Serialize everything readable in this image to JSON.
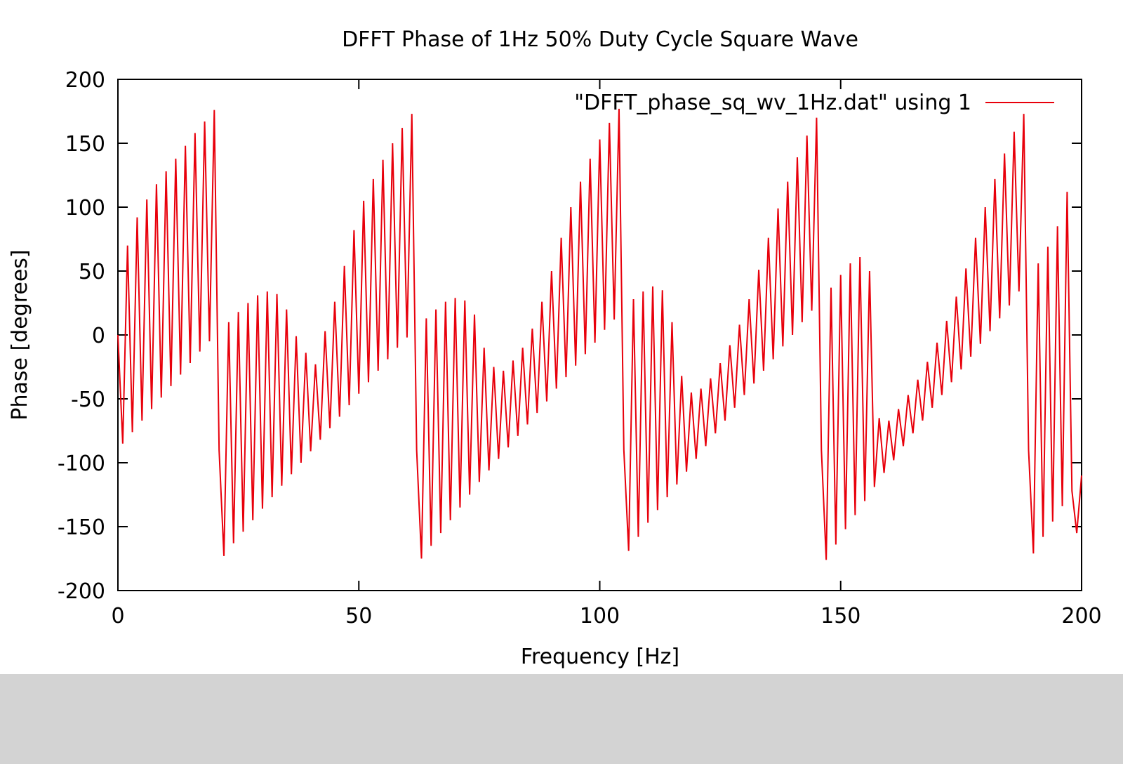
{
  "chart_data": {
    "type": "line",
    "title": "DFFT Phase of 1Hz 50% Duty Cycle Square Wave",
    "xlabel": "Frequency [Hz]",
    "ylabel": "Phase [degrees]",
    "xlim": [
      0,
      200
    ],
    "ylim": [
      -200,
      200
    ],
    "xticks": [
      0,
      50,
      100,
      150,
      200
    ],
    "yticks": [
      -200,
      -150,
      -100,
      -50,
      0,
      50,
      100,
      150,
      200
    ],
    "grid": false,
    "legend_position": "top-right",
    "series": [
      {
        "name": "\"DFFT_phase_sq_wv_1Hz.dat\" using 1",
        "color": "#e8000b",
        "x": [
          0,
          1,
          2,
          3,
          4,
          5,
          6,
          7,
          8,
          9,
          10,
          11,
          12,
          13,
          14,
          15,
          16,
          17,
          18,
          19,
          20,
          21,
          22,
          23,
          24,
          25,
          26,
          27,
          28,
          29,
          30,
          31,
          32,
          33,
          34,
          35,
          36,
          37,
          38,
          39,
          40,
          41,
          42,
          43,
          44,
          45,
          46,
          47,
          48,
          49,
          50,
          51,
          52,
          53,
          54,
          55,
          56,
          57,
          58,
          59,
          60,
          61,
          62,
          63,
          64,
          65,
          66,
          67,
          68,
          69,
          70,
          71,
          72,
          73,
          74,
          75,
          76,
          77,
          78,
          79,
          80,
          81,
          82,
          83,
          84,
          85,
          86,
          87,
          88,
          89,
          90,
          91,
          92,
          93,
          94,
          95,
          96,
          97,
          98,
          99,
          100,
          101,
          102,
          103,
          104,
          105,
          106,
          107,
          108,
          109,
          110,
          111,
          112,
          113,
          114,
          115,
          116,
          117,
          118,
          119,
          120,
          121,
          122,
          123,
          124,
          125,
          126,
          127,
          128,
          129,
          130,
          131,
          132,
          133,
          134,
          135,
          136,
          137,
          138,
          139,
          140,
          141,
          142,
          143,
          144,
          145,
          146,
          147,
          148,
          149,
          150,
          151,
          152,
          153,
          154,
          155,
          156,
          157,
          158,
          159,
          160,
          161,
          162,
          163,
          164,
          165,
          166,
          167,
          168,
          169,
          170,
          171,
          172,
          173,
          174,
          175,
          176,
          177,
          178,
          179,
          180,
          181,
          182,
          183,
          184,
          185,
          186,
          187,
          188,
          189,
          190,
          191,
          192,
          193,
          194,
          195,
          196,
          197,
          198,
          199,
          200
        ],
        "values": [
          0,
          -85,
          70,
          -76,
          92,
          -67,
          106,
          -58,
          118,
          -49,
          128,
          -40,
          138,
          -31,
          148,
          -22,
          158,
          -13,
          167,
          -5,
          176,
          -90,
          -173,
          10,
          -163,
          18,
          -154,
          25,
          -145,
          31,
          -136,
          34,
          -127,
          32,
          -118,
          20,
          -109,
          -1,
          -100,
          -14,
          -91,
          -23,
          -82,
          3,
          -73,
          26,
          -64,
          54,
          -55,
          82,
          -46,
          105,
          -37,
          122,
          -28,
          137,
          -19,
          150,
          -10,
          162,
          -2,
          173,
          -90,
          -175,
          13,
          -165,
          20,
          -155,
          26,
          -145,
          29,
          -135,
          27,
          -125,
          16,
          -115,
          -10,
          -106,
          -25,
          -97,
          -28,
          -88,
          -20,
          -79,
          -10,
          -70,
          5,
          -61,
          26,
          -52,
          50,
          -42,
          76,
          -33,
          100,
          -24,
          120,
          -15,
          138,
          -6,
          153,
          4,
          166,
          12,
          177,
          -90,
          -169,
          28,
          -158,
          34,
          -147,
          38,
          -137,
          35,
          -127,
          10,
          -117,
          -32,
          -107,
          -45,
          -97,
          -42,
          -87,
          -34,
          -77,
          -22,
          -67,
          -8,
          -57,
          8,
          -47,
          28,
          -38,
          51,
          -28,
          76,
          -19,
          99,
          -9,
          120,
          0,
          139,
          10,
          156,
          19,
          170,
          -90,
          -176,
          37,
          -164,
          47,
          -152,
          56,
          -141,
          61,
          -130,
          50,
          -119,
          -65,
          -108,
          -67,
          -98,
          -58,
          -87,
          -47,
          -77,
          -35,
          -67,
          -21,
          -57,
          -6,
          -47,
          11,
          -37,
          30,
          -27,
          52,
          -17,
          76,
          -7,
          100,
          3,
          122,
          13,
          142,
          23,
          159,
          34,
          173,
          -90,
          -171,
          56,
          -158,
          69,
          -146,
          85,
          -134,
          112,
          -122,
          -155,
          -110
        ]
      }
    ]
  }
}
